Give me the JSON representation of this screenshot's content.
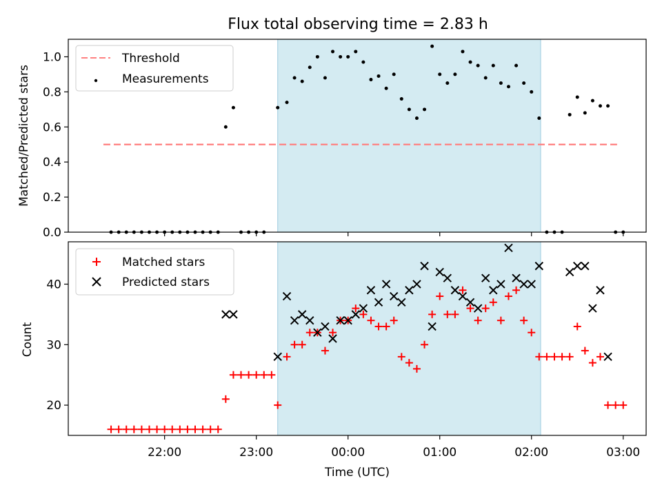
{
  "chart_data": [
    {
      "type": "scatter",
      "title": "Flux total observing time = 2.83 h",
      "xlabel": "",
      "ylabel": "Matched/Predicted stars",
      "ylim": [
        0,
        1.1
      ],
      "yticks": [
        "0.0",
        "0.2",
        "0.4",
        "0.6",
        "0.8",
        "1.0"
      ],
      "legend_position": "top-left",
      "shaded_span": [
        "23:14",
        "02:06"
      ],
      "series": [
        {
          "name": "Threshold",
          "style": "dashed-line",
          "color": "#ff7f7f",
          "points": [
            [
              "21:20",
              0.5
            ],
            [
              "02:56",
              0.5
            ]
          ]
        },
        {
          "name": "Measurements",
          "style": "dots",
          "color": "#000000",
          "points": [
            [
              "21:25",
              0.0
            ],
            [
              "21:30",
              0.0
            ],
            [
              "21:35",
              0.0
            ],
            [
              "21:40",
              0.0
            ],
            [
              "21:45",
              0.0
            ],
            [
              "21:50",
              0.0
            ],
            [
              "21:55",
              0.0
            ],
            [
              "22:00",
              0.0
            ],
            [
              "22:05",
              0.0
            ],
            [
              "22:10",
              0.0
            ],
            [
              "22:15",
              0.0
            ],
            [
              "22:20",
              0.0
            ],
            [
              "22:25",
              0.0
            ],
            [
              "22:30",
              0.0
            ],
            [
              "22:35",
              0.0
            ],
            [
              "22:40",
              0.6
            ],
            [
              "22:45",
              0.71
            ],
            [
              "22:50",
              0.0
            ],
            [
              "22:55",
              0.0
            ],
            [
              "23:00",
              0.0
            ],
            [
              "23:05",
              0.0
            ],
            [
              "23:14",
              0.71
            ],
            [
              "23:20",
              0.74
            ],
            [
              "23:25",
              0.88
            ],
            [
              "23:30",
              0.86
            ],
            [
              "23:35",
              0.94
            ],
            [
              "23:40",
              1.0
            ],
            [
              "23:45",
              0.88
            ],
            [
              "23:50",
              1.03
            ],
            [
              "23:55",
              1.0
            ],
            [
              "00:00",
              1.0
            ],
            [
              "00:05",
              1.03
            ],
            [
              "00:10",
              0.97
            ],
            [
              "00:15",
              0.87
            ],
            [
              "00:20",
              0.89
            ],
            [
              "00:25",
              0.82
            ],
            [
              "00:30",
              0.9
            ],
            [
              "00:35",
              0.76
            ],
            [
              "00:40",
              0.7
            ],
            [
              "00:45",
              0.65
            ],
            [
              "00:50",
              0.7
            ],
            [
              "00:55",
              1.06
            ],
            [
              "01:00",
              0.9
            ],
            [
              "01:05",
              0.85
            ],
            [
              "01:10",
              0.9
            ],
            [
              "01:15",
              1.03
            ],
            [
              "01:20",
              0.97
            ],
            [
              "01:25",
              0.95
            ],
            [
              "01:30",
              0.88
            ],
            [
              "01:35",
              0.95
            ],
            [
              "01:40",
              0.85
            ],
            [
              "01:45",
              0.83
            ],
            [
              "01:50",
              0.95
            ],
            [
              "01:55",
              0.85
            ],
            [
              "02:00",
              0.8
            ],
            [
              "02:05",
              0.65
            ],
            [
              "02:10",
              0.0
            ],
            [
              "02:15",
              0.0
            ],
            [
              "02:20",
              0.0
            ],
            [
              "02:25",
              0.67
            ],
            [
              "02:30",
              0.77
            ],
            [
              "02:35",
              0.68
            ],
            [
              "02:40",
              0.75
            ],
            [
              "02:45",
              0.72
            ],
            [
              "02:50",
              0.72
            ],
            [
              "02:55",
              0.0
            ],
            [
              "03:00",
              0.0
            ]
          ]
        }
      ]
    },
    {
      "type": "scatter",
      "title": "",
      "xlabel": "Time (UTC)",
      "ylabel": "Count",
      "ylim": [
        15,
        47
      ],
      "yticks": [
        "20",
        "30",
        "40"
      ],
      "xticks": [
        "22:00",
        "23:00",
        "00:00",
        "01:00",
        "02:00",
        "03:00"
      ],
      "xlim": [
        "20:57",
        "03:15"
      ],
      "legend_position": "top-left",
      "shaded_span": [
        "23:14",
        "02:06"
      ],
      "series": [
        {
          "name": "Matched stars",
          "marker": "+",
          "color": "#ff0000",
          "points": [
            [
              "21:25",
              16
            ],
            [
              "21:30",
              16
            ],
            [
              "21:35",
              16
            ],
            [
              "21:40",
              16
            ],
            [
              "21:45",
              16
            ],
            [
              "21:50",
              16
            ],
            [
              "21:55",
              16
            ],
            [
              "22:00",
              16
            ],
            [
              "22:05",
              16
            ],
            [
              "22:10",
              16
            ],
            [
              "22:15",
              16
            ],
            [
              "22:20",
              16
            ],
            [
              "22:25",
              16
            ],
            [
              "22:30",
              16
            ],
            [
              "22:35",
              16
            ],
            [
              "22:40",
              21
            ],
            [
              "22:45",
              25
            ],
            [
              "22:50",
              25
            ],
            [
              "22:55",
              25
            ],
            [
              "23:00",
              25
            ],
            [
              "23:05",
              25
            ],
            [
              "23:10",
              25
            ],
            [
              "23:14",
              20
            ],
            [
              "23:20",
              28
            ],
            [
              "23:25",
              30
            ],
            [
              "23:30",
              30
            ],
            [
              "23:35",
              32
            ],
            [
              "23:40",
              32
            ],
            [
              "23:45",
              29
            ],
            [
              "23:50",
              32
            ],
            [
              "23:55",
              34
            ],
            [
              "00:00",
              34
            ],
            [
              "00:05",
              36
            ],
            [
              "00:10",
              35
            ],
            [
              "00:15",
              34
            ],
            [
              "00:20",
              33
            ],
            [
              "00:25",
              33
            ],
            [
              "00:30",
              34
            ],
            [
              "00:35",
              28
            ],
            [
              "00:40",
              27
            ],
            [
              "00:45",
              26
            ],
            [
              "00:50",
              30
            ],
            [
              "00:55",
              35
            ],
            [
              "01:00",
              38
            ],
            [
              "01:05",
              35
            ],
            [
              "01:10",
              35
            ],
            [
              "01:15",
              39
            ],
            [
              "01:20",
              36
            ],
            [
              "01:25",
              34
            ],
            [
              "01:30",
              36
            ],
            [
              "01:35",
              37
            ],
            [
              "01:40",
              34
            ],
            [
              "01:45",
              38
            ],
            [
              "01:50",
              39
            ],
            [
              "01:55",
              34
            ],
            [
              "02:00",
              32
            ],
            [
              "02:05",
              28
            ],
            [
              "02:10",
              28
            ],
            [
              "02:15",
              28
            ],
            [
              "02:20",
              28
            ],
            [
              "02:25",
              28
            ],
            [
              "02:30",
              33
            ],
            [
              "02:35",
              29
            ],
            [
              "02:40",
              27
            ],
            [
              "02:45",
              28
            ],
            [
              "02:50",
              20
            ],
            [
              "02:55",
              20
            ],
            [
              "03:00",
              20
            ]
          ]
        },
        {
          "name": "Predicted stars",
          "marker": "x",
          "color": "#000000",
          "points": [
            [
              "22:40",
              35
            ],
            [
              "22:45",
              35
            ],
            [
              "23:14",
              28
            ],
            [
              "23:20",
              38
            ],
            [
              "23:25",
              34
            ],
            [
              "23:30",
              35
            ],
            [
              "23:35",
              34
            ],
            [
              "23:40",
              32
            ],
            [
              "23:45",
              33
            ],
            [
              "23:50",
              31
            ],
            [
              "23:55",
              34
            ],
            [
              "00:00",
              34
            ],
            [
              "00:05",
              35
            ],
            [
              "00:10",
              36
            ],
            [
              "00:15",
              39
            ],
            [
              "00:20",
              37
            ],
            [
              "00:25",
              40
            ],
            [
              "00:30",
              38
            ],
            [
              "00:35",
              37
            ],
            [
              "00:40",
              39
            ],
            [
              "00:45",
              40
            ],
            [
              "00:50",
              43
            ],
            [
              "00:55",
              33
            ],
            [
              "01:00",
              42
            ],
            [
              "01:05",
              41
            ],
            [
              "01:10",
              39
            ],
            [
              "01:15",
              38
            ],
            [
              "01:20",
              37
            ],
            [
              "01:25",
              36
            ],
            [
              "01:30",
              41
            ],
            [
              "01:35",
              39
            ],
            [
              "01:40",
              40
            ],
            [
              "01:45",
              46
            ],
            [
              "01:50",
              41
            ],
            [
              "01:55",
              40
            ],
            [
              "02:00",
              40
            ],
            [
              "02:05",
              43
            ],
            [
              "02:25",
              42
            ],
            [
              "02:30",
              43
            ],
            [
              "02:35",
              43
            ],
            [
              "02:40",
              36
            ],
            [
              "02:45",
              39
            ],
            [
              "02:50",
              28
            ]
          ]
        }
      ]
    }
  ]
}
